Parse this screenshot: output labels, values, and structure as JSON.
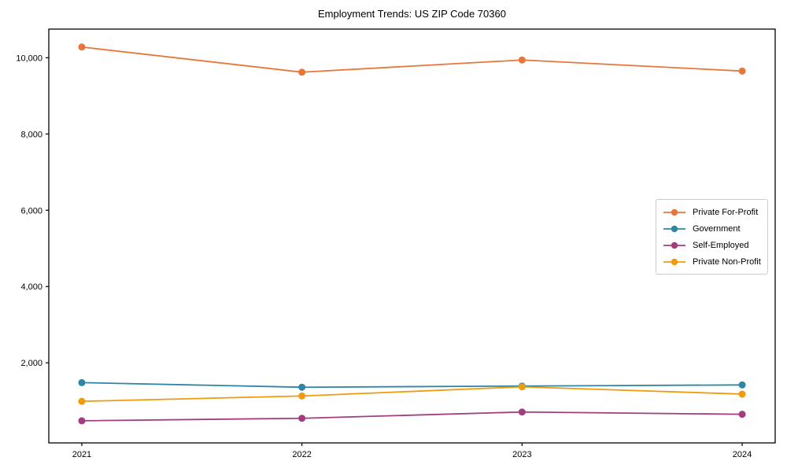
{
  "figure": {
    "background": "#ffffff",
    "axes_color": "#000000",
    "legend_border_color": "#cccccc"
  },
  "chart_data": {
    "type": "line",
    "title": "Employment Trends: US ZIP Code 70360",
    "xlabel": "",
    "ylabel": "",
    "x": [
      2021,
      2022,
      2023,
      2024
    ],
    "x_tick_labels": [
      "2021",
      "2022",
      "2023",
      "2024"
    ],
    "y_ticks": [
      2000,
      4000,
      6000,
      8000,
      10000
    ],
    "y_tick_labels": [
      "2,000",
      "4,000",
      "6,000",
      "8,000",
      "10,000"
    ],
    "xlim": [
      2020.85,
      2024.15
    ],
    "ylim": [
      -100,
      10750
    ],
    "grid": false,
    "legend_position": "center-right",
    "marker": "circle",
    "series": [
      {
        "name": "Private For-Profit",
        "color": "#e8763b",
        "values": [
          10280,
          9620,
          9940,
          9650
        ]
      },
      {
        "name": "Government",
        "color": "#2e86a4",
        "values": [
          1480,
          1360,
          1390,
          1420
        ]
      },
      {
        "name": "Self-Employed",
        "color": "#a23d7e",
        "values": [
          480,
          545,
          710,
          650
        ]
      },
      {
        "name": "Private Non-Profit",
        "color": "#f09b0d",
        "values": [
          990,
          1130,
          1370,
          1180
        ]
      }
    ]
  }
}
